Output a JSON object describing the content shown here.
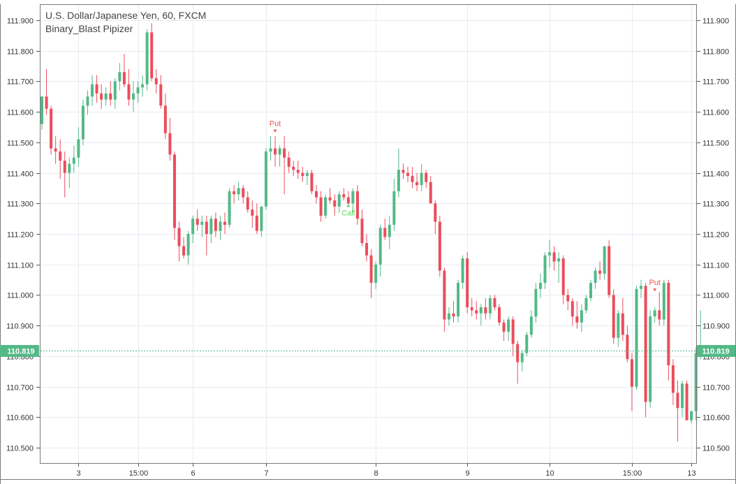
{
  "chart": {
    "title": "U.S. Dollar/Japanese Yen, 60, FXCM",
    "indicator": "Binary_Blast Pipizer",
    "last_price_label": "110.819"
  },
  "chart_data": {
    "type": "candlestick",
    "title": "U.S. Dollar/Japanese Yen, 60, FXCM",
    "subtitle": "Binary_Blast Pipizer",
    "ylim": [
      110.45,
      111.95
    ],
    "y_ticks": [
      "110.500",
      "110.600",
      "110.700",
      "110.800",
      "110.900",
      "111.000",
      "111.100",
      "111.200",
      "111.300",
      "111.400",
      "111.500",
      "111.600",
      "111.700",
      "111.800",
      "111.900"
    ],
    "x_ticks": [
      "3",
      "15:00",
      "6",
      "7",
      "8",
      "9",
      "10",
      "15:00",
      "13"
    ],
    "grid": true,
    "last_price": 110.819,
    "colors": {
      "up": "#53b987",
      "down": "#eb4d5c",
      "grid": "#e6ebf1",
      "axis": "#555555",
      "text": "#333333",
      "put_signal": "#ef5350",
      "call_signal": "#5fd35f"
    },
    "candles": [
      [
        111.56,
        111.65,
        111.54,
        111.65
      ],
      [
        111.65,
        111.74,
        111.59,
        111.61
      ],
      [
        111.61,
        111.62,
        111.46,
        111.48
      ],
      [
        111.48,
        111.52,
        111.43,
        111.47
      ],
      [
        111.47,
        111.51,
        111.38,
        111.44
      ],
      [
        111.44,
        111.47,
        111.32,
        111.4
      ],
      [
        111.4,
        111.45,
        111.35,
        111.43
      ],
      [
        111.43,
        111.49,
        111.4,
        111.45
      ],
      [
        111.45,
        111.55,
        111.42,
        111.51
      ],
      [
        111.51,
        111.64,
        111.49,
        111.62
      ],
      [
        111.62,
        111.67,
        111.59,
        111.65
      ],
      [
        111.65,
        111.72,
        111.62,
        111.69
      ],
      [
        111.69,
        111.72,
        111.63,
        111.66
      ],
      [
        111.66,
        111.69,
        111.61,
        111.64
      ],
      [
        111.64,
        111.68,
        111.62,
        111.66
      ],
      [
        111.66,
        111.7,
        111.62,
        111.64
      ],
      [
        111.64,
        111.71,
        111.61,
        111.7
      ],
      [
        111.7,
        111.76,
        111.67,
        111.73
      ],
      [
        111.73,
        111.79,
        111.68,
        111.69
      ],
      [
        111.69,
        111.74,
        111.62,
        111.64
      ],
      [
        111.64,
        111.7,
        111.6,
        111.66
      ],
      [
        111.66,
        111.7,
        111.63,
        111.68
      ],
      [
        111.68,
        111.72,
        111.65,
        111.69
      ],
      [
        111.69,
        111.87,
        111.67,
        111.86
      ],
      [
        111.86,
        111.89,
        111.7,
        111.71
      ],
      [
        111.71,
        111.74,
        111.66,
        111.69
      ],
      [
        111.69,
        111.72,
        111.61,
        111.62
      ],
      [
        111.62,
        111.66,
        111.51,
        111.53
      ],
      [
        111.53,
        111.58,
        111.44,
        111.46
      ],
      [
        111.46,
        111.47,
        111.18,
        111.22
      ],
      [
        111.22,
        111.24,
        111.11,
        111.16
      ],
      [
        111.16,
        111.19,
        111.12,
        111.13
      ],
      [
        111.13,
        111.21,
        111.1,
        111.2
      ],
      [
        111.2,
        111.26,
        111.17,
        111.25
      ],
      [
        111.25,
        111.28,
        111.21,
        111.23
      ],
      [
        111.23,
        111.26,
        111.19,
        111.24
      ],
      [
        111.24,
        111.26,
        111.13,
        111.2
      ],
      [
        111.2,
        111.26,
        111.17,
        111.25
      ],
      [
        111.25,
        111.27,
        111.19,
        111.21
      ],
      [
        111.21,
        111.26,
        111.18,
        111.24
      ],
      [
        111.24,
        111.27,
        111.2,
        111.23
      ],
      [
        111.23,
        111.35,
        111.22,
        111.34
      ],
      [
        111.34,
        111.36,
        111.3,
        111.33
      ],
      [
        111.33,
        111.37,
        111.31,
        111.35
      ],
      [
        111.35,
        111.36,
        111.3,
        111.32
      ],
      [
        111.32,
        111.34,
        111.27,
        111.28
      ],
      [
        111.28,
        111.31,
        111.22,
        111.26
      ],
      [
        111.26,
        111.3,
        111.2,
        111.21
      ],
      [
        111.21,
        111.29,
        111.19,
        111.29
      ],
      [
        111.29,
        111.48,
        111.28,
        111.47
      ],
      [
        111.47,
        111.52,
        111.44,
        111.48
      ],
      [
        111.48,
        111.52,
        111.42,
        111.46
      ],
      [
        111.46,
        111.49,
        111.42,
        111.48
      ],
      [
        111.48,
        111.52,
        111.33,
        111.45
      ],
      [
        111.45,
        111.47,
        111.4,
        111.42
      ],
      [
        111.42,
        111.44,
        111.39,
        111.41
      ],
      [
        111.41,
        111.44,
        111.38,
        111.4
      ],
      [
        111.4,
        111.42,
        111.37,
        111.39
      ],
      [
        111.39,
        111.41,
        111.36,
        111.4
      ],
      [
        111.4,
        111.41,
        111.33,
        111.34
      ],
      [
        111.34,
        111.36,
        111.3,
        111.32
      ],
      [
        111.32,
        111.34,
        111.24,
        111.26
      ],
      [
        111.26,
        111.33,
        111.25,
        111.32
      ],
      [
        111.32,
        111.35,
        111.3,
        111.31
      ],
      [
        111.31,
        111.33,
        111.26,
        111.29
      ],
      [
        111.29,
        111.34,
        111.27,
        111.33
      ],
      [
        111.33,
        111.35,
        111.31,
        111.32
      ],
      [
        111.32,
        111.34,
        111.29,
        111.3
      ],
      [
        111.3,
        111.35,
        111.27,
        111.34
      ],
      [
        111.34,
        111.36,
        111.23,
        111.25
      ],
      [
        111.25,
        111.28,
        111.16,
        111.17
      ],
      [
        111.17,
        111.2,
        111.11,
        111.13
      ],
      [
        111.13,
        111.15,
        110.99,
        111.04
      ],
      [
        111.04,
        111.11,
        111.02,
        111.1
      ],
      [
        111.1,
        111.23,
        111.06,
        111.22
      ],
      [
        111.22,
        111.25,
        111.18,
        111.19
      ],
      [
        111.19,
        111.26,
        111.15,
        111.23
      ],
      [
        111.23,
        111.38,
        111.21,
        111.34
      ],
      [
        111.34,
        111.48,
        111.32,
        111.41
      ],
      [
        111.41,
        111.43,
        111.38,
        111.4
      ],
      [
        111.4,
        111.42,
        111.37,
        111.39
      ],
      [
        111.39,
        111.42,
        111.35,
        111.37
      ],
      [
        111.37,
        111.4,
        111.34,
        111.36
      ],
      [
        111.36,
        111.43,
        111.34,
        111.4
      ],
      [
        111.4,
        111.41,
        111.35,
        111.37
      ],
      [
        111.37,
        111.39,
        111.3,
        111.3
      ],
      [
        111.3,
        111.31,
        111.2,
        111.24
      ],
      [
        111.24,
        111.26,
        111.06,
        111.08
      ],
      [
        111.08,
        111.09,
        110.88,
        110.92
      ],
      [
        110.92,
        110.96,
        110.9,
        110.94
      ],
      [
        110.94,
        110.98,
        110.91,
        110.93
      ],
      [
        110.93,
        111.05,
        110.91,
        111.04
      ],
      [
        111.04,
        111.13,
        111.02,
        111.12
      ],
      [
        111.12,
        111.14,
        110.94,
        110.96
      ],
      [
        110.96,
        110.99,
        110.93,
        110.95
      ],
      [
        110.95,
        110.98,
        110.92,
        110.94
      ],
      [
        110.94,
        110.97,
        110.9,
        110.96
      ],
      [
        110.96,
        110.99,
        110.92,
        110.94
      ],
      [
        110.94,
        111.0,
        110.92,
        110.99
      ],
      [
        110.99,
        111.0,
        110.95,
        110.96
      ],
      [
        110.96,
        110.97,
        110.9,
        110.91
      ],
      [
        110.91,
        110.92,
        110.85,
        110.88
      ],
      [
        110.88,
        110.93,
        110.85,
        110.92
      ],
      [
        110.92,
        110.93,
        110.8,
        110.84
      ],
      [
        110.84,
        110.85,
        110.71,
        110.78
      ],
      [
        110.78,
        110.82,
        110.75,
        110.81
      ],
      [
        110.81,
        110.88,
        110.8,
        110.87
      ],
      [
        110.87,
        110.95,
        110.86,
        110.93
      ],
      [
        110.93,
        111.04,
        110.91,
        111.02
      ],
      [
        111.02,
        111.07,
        110.99,
        111.04
      ],
      [
        111.04,
        111.14,
        111.02,
        111.13
      ],
      [
        111.13,
        111.18,
        111.09,
        111.14
      ],
      [
        111.14,
        111.16,
        111.08,
        111.11
      ],
      [
        111.11,
        111.14,
        111.04,
        111.12
      ],
      [
        111.12,
        111.13,
        110.97,
        111.0
      ],
      [
        111.0,
        111.02,
        110.95,
        110.98
      ],
      [
        110.98,
        110.99,
        110.9,
        110.93
      ],
      [
        110.93,
        110.98,
        110.89,
        110.91
      ],
      [
        110.91,
        110.97,
        110.88,
        110.95
      ],
      [
        110.95,
        111.0,
        110.94,
        110.99
      ],
      [
        110.99,
        111.05,
        110.98,
        111.04
      ],
      [
        111.04,
        111.09,
        111.02,
        111.08
      ],
      [
        111.08,
        111.11,
        111.05,
        111.07
      ],
      [
        111.07,
        111.16,
        111.05,
        111.16
      ],
      [
        111.16,
        111.18,
        110.99,
        111.0
      ],
      [
        111.0,
        111.02,
        110.84,
        110.86
      ],
      [
        110.86,
        110.95,
        110.83,
        110.94
      ],
      [
        110.94,
        110.99,
        110.85,
        110.87
      ],
      [
        110.87,
        110.9,
        110.78,
        110.79
      ],
      [
        110.79,
        110.81,
        110.62,
        110.7
      ],
      [
        110.7,
        111.03,
        110.69,
        111.02
      ],
      [
        111.02,
        111.05,
        110.99,
        111.03
      ],
      [
        111.03,
        111.04,
        110.6,
        110.65
      ],
      [
        110.65,
        110.95,
        110.63,
        110.93
      ],
      [
        110.93,
        110.96,
        110.91,
        110.95
      ],
      [
        110.95,
        111.01,
        110.9,
        110.92
      ],
      [
        110.92,
        111.05,
        110.9,
        111.04
      ],
      [
        111.04,
        111.05,
        110.72,
        110.77
      ],
      [
        110.77,
        110.79,
        110.64,
        110.68
      ],
      [
        110.68,
        110.72,
        110.52,
        110.63
      ],
      [
        110.63,
        110.72,
        110.6,
        110.71
      ],
      [
        110.71,
        110.72,
        110.59,
        110.59
      ],
      [
        110.59,
        110.62,
        110.58,
        110.62
      ],
      [
        110.62,
        110.83,
        110.59,
        110.81
      ],
      [
        110.81,
        110.95,
        110.79,
        110.819
      ]
    ],
    "signals": [
      {
        "label": "Put",
        "candle_index": 51,
        "value": 111.53,
        "direction": "down"
      },
      {
        "label": "Call",
        "candle_index": 67,
        "value": 111.3,
        "direction": "up"
      },
      {
        "label": "Put",
        "candle_index": 134,
        "value": 111.01,
        "direction": "down"
      }
    ],
    "x_tick_candle_index": [
      8,
      21,
      33,
      49,
      73,
      93,
      111,
      129,
      142
    ]
  }
}
